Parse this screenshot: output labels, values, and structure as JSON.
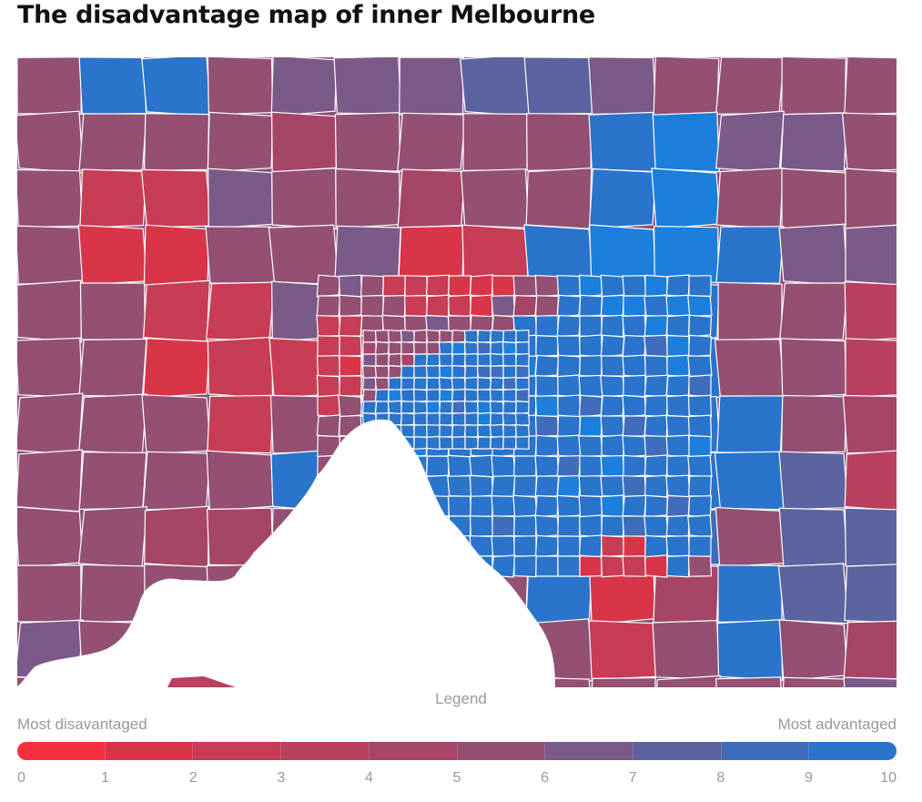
{
  "title": "The disadvantage map of inner Melbourne",
  "legend": {
    "title": "Legend",
    "low_label": "Most disavantaged",
    "high_label": "Most advantaged",
    "ticks": [
      "0",
      "1",
      "2",
      "3",
      "4",
      "5",
      "6",
      "7",
      "8",
      "9",
      "10"
    ],
    "colors": [
      "#f5303f",
      "#d93549",
      "#c93c55",
      "#b9405e",
      "#a64567",
      "#935072",
      "#7b5a8a",
      "#5c63a0",
      "#3f6dbb",
      "#2a74cc",
      "#1c7fdb"
    ]
  },
  "map": {
    "region": "inner Melbourne",
    "sea_color": "#ffffff",
    "border_color": "#ffffff",
    "scale_min": 0,
    "scale_max": 10
  }
}
